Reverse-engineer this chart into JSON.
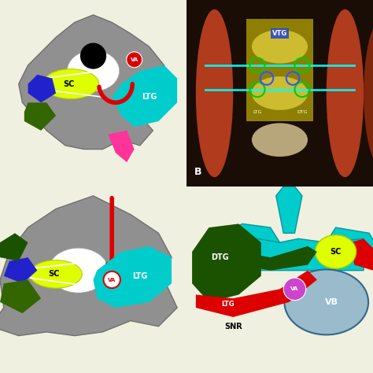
{
  "bg_color": "#f0f0e0",
  "colors": {
    "gray_vert": "#909090",
    "gray_vert_dark": "#707070",
    "sc_yellow": "#ddff00",
    "red": "#dd0000",
    "cyan": "#00cccc",
    "blue": "#2222cc",
    "dark_green": "#1a5200",
    "green": "#336600",
    "pink": "#ff3399",
    "purple": "#cc44cc",
    "vb_gray": "#99bbcc",
    "white": "#ffffff",
    "black": "#000000"
  },
  "labels": {
    "SC": "SC",
    "VA": "VA",
    "LTG": "LTG",
    "DTG": "DTG",
    "VB": "VB",
    "SNR": "SNR",
    "VTG": "VTG",
    "B": "B"
  }
}
